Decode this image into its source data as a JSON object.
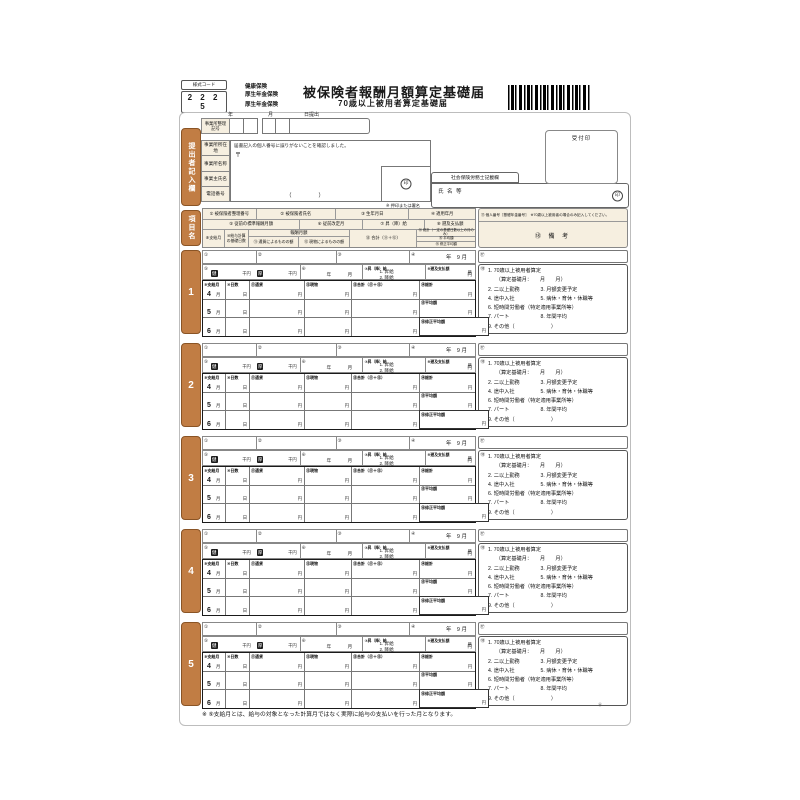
{
  "masthead": {
    "code_label": "様式コード",
    "code_value": "2 2 2 5",
    "insurers": [
      "健康保険",
      "厚生年金保険",
      "厚生年金保険"
    ],
    "title": "被保険者報酬月額算定基礎届",
    "subtitle": "70歳以上被用者算定基礎届"
  },
  "date_line": {
    "labels": [
      "年",
      "月",
      "日提出"
    ]
  },
  "submitter": {
    "tab": "提出者記入欄",
    "seiri_label": "事業所整理記号",
    "row_labels": [
      "事業所所在地",
      "事業所名称",
      "事業主氏名",
      "電話番号"
    ],
    "privacy_note": "届書記入の個人番号に誤りがないことを確認しました。",
    "postal": "〒",
    "phone_format": "（　　　　）",
    "stamp_char": "印",
    "stamp_note": "※ 押印または署名",
    "sr_title": "社会保険労務士記載欄",
    "sr_name": "氏 名 等",
    "receipt_label": "受付印"
  },
  "columns_header": {
    "tab": "項目名",
    "r1": [
      "① 被保険者整理番号",
      "② 被保険者氏名",
      "③ 生年月日",
      "④ 適用年月"
    ],
    "r1_right": "⑰ 個人番号［基礎年金番号］　※70歳以上被用者の場合のみ記入してください。",
    "r2": [
      "⑤ 従前の標準報酬月額",
      "⑥ 従前改定月",
      "⑦ 昇（降）給",
      "⑧ 遡及支払額"
    ],
    "r3_c1a": "⑨支給月",
    "r3_c1b": "⑩給与計算の基礎日数",
    "r3_hoshu": "報酬月額",
    "r3_c2a": "⑪ 通貨によるものの額",
    "r3_c2b": "⑫ 現物によるものの額",
    "r3_c3": "⑬ 合計（⑪＋⑫）",
    "r3_c4": [
      "⑭ 総計（一定の基礎日数以上の月のみ）",
      "⑮ 平均額",
      "⑯ 修正平均額"
    ],
    "r2_right": "⑱ 備 考"
  },
  "record": {
    "markers": {
      "m1": "①",
      "m2": "②",
      "m3": "③",
      "m4": "④",
      "m5": "⑤",
      "m6": "⑥",
      "m17": "⑰",
      "m18": "⑱"
    },
    "apply_preset": "年　9 月",
    "health_mark": "健",
    "pension_mark": "厚",
    "raise_label": "⑦昇（降）給",
    "raise_opt1": "1. 昇給",
    "raise_opt2": "2. 降給",
    "retro_label": "⑧遡及支払額",
    "units": {
      "year": "年",
      "month": "月",
      "day": "日",
      "yen": "円",
      "sen_yen": "千円"
    },
    "col_labels": [
      "⑨支給月",
      "⑩日数",
      "⑪通貨",
      "⑫現物",
      "⑬合計（⑪＋⑫）"
    ],
    "month_rows": [
      {
        "num": "4",
        "total_label": "⑭総計"
      },
      {
        "num": "5",
        "total_label": "⑮平均額"
      },
      {
        "num": "6",
        "total_label": "⑯修正平均額"
      }
    ],
    "remarks": [
      "1. 70歳以上被用者算定",
      "　　（算定基礎月：　　月　　月）",
      "2. 二以上勤務　　　　3. 月額変更予定",
      "4. 途中入社　　　　　5. 病休・育休・休職等",
      "6. 短時間労働者（特定適用事業所等）",
      "7. パート　　　　　　8. 年間平均",
      "9. その他（　　　　　　　）"
    ]
  },
  "records": [
    {
      "no": "1"
    },
    {
      "no": "2"
    },
    {
      "no": "3"
    },
    {
      "no": "4"
    },
    {
      "no": "5"
    }
  ],
  "footer": {
    "note": "※ ⑨支給月とは、給与の対象となった計算月ではなく実際に給与の支払いを行った月となります。",
    "code": "Ⓗ―――"
  },
  "colors": {
    "accent": "#c17d44",
    "accent_border": "#8a5425",
    "panel_bg": "#f6efe0"
  }
}
